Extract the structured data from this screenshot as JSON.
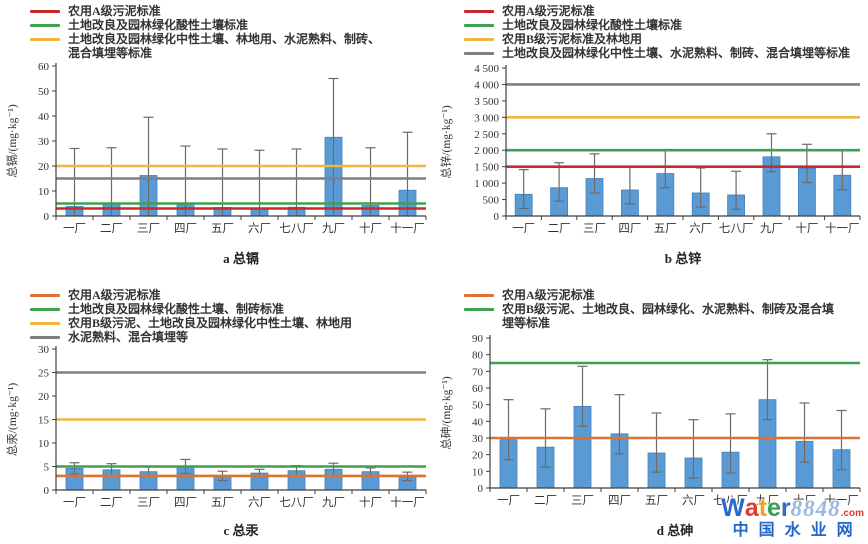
{
  "colors": {
    "red": "#c9282d",
    "orange": "#dc7233",
    "green": "#3fa04e",
    "yellow": "#f0b63f",
    "gray": "#7f7f7f",
    "bar": "#5b9bd5",
    "bar_edge": "#4380b8",
    "error": "#6b6b6b",
    "axis": "#3f3f3f"
  },
  "chart_data": [
    {
      "id": "a",
      "type": "bar",
      "title": "a 总镉",
      "ylabel": "总镉/(mg·kg⁻¹)",
      "ylim": [
        0,
        60
      ],
      "yticks": [
        0,
        10,
        20,
        30,
        40,
        50,
        60
      ],
      "ytick_labels": [
        "0",
        "10",
        "20",
        "30",
        "40",
        "50",
        "60"
      ],
      "categories": [
        "一厂",
        "二厂",
        "三厂",
        "四厂",
        "五厂",
        "六厂",
        "七八厂",
        "九厂",
        "十厂",
        "十一厂"
      ],
      "values": [
        3.8,
        4.8,
        16.2,
        5.1,
        3.4,
        2.7,
        3.5,
        31.5,
        4.2,
        10.3
      ],
      "error_top": [
        27,
        27.3,
        39.5,
        28,
        26.8,
        26.3,
        26.8,
        55,
        27.3,
        33.5
      ],
      "error_low": [
        0,
        0,
        0,
        0,
        0,
        0,
        0,
        0,
        0,
        0
      ],
      "legend": [
        {
          "color": "red",
          "label": "农用A级污泥标准"
        },
        {
          "color": "green",
          "label": "土地改良及园林绿化酸性土壤标准"
        },
        {
          "color": "yellow",
          "label": "土地改良及园林绿化中性土壤、林地用、水泥熟料、制砖、混合填埋等标准"
        }
      ],
      "reference_lines": [
        {
          "color": "gray",
          "value": 15
        },
        {
          "color": "yellow",
          "value": 20
        },
        {
          "color": "green",
          "value": 5
        },
        {
          "color": "red",
          "value": 3
        }
      ]
    },
    {
      "id": "b",
      "type": "bar",
      "title": "b 总锌",
      "ylabel": "总锌/(mg·kg⁻¹)",
      "ylim": [
        0,
        4500
      ],
      "yticks": [
        0,
        500,
        1000,
        1500,
        2000,
        2500,
        3000,
        3500,
        4000,
        4500
      ],
      "ytick_labels": [
        "0",
        "500",
        "1 000",
        "1 500",
        "2 000",
        "2 500",
        "3 000",
        "3 500",
        "4 000",
        "4 500"
      ],
      "categories": [
        "一厂",
        "二厂",
        "三厂",
        "四厂",
        "五厂",
        "六厂",
        "七八厂",
        "九厂",
        "十厂",
        "十一厂"
      ],
      "values": [
        660,
        860,
        1140,
        790,
        1290,
        700,
        640,
        1800,
        1450,
        1240
      ],
      "error_top": [
        1410,
        1620,
        1890,
        1490,
        2020,
        1460,
        1360,
        2500,
        2180,
        1990
      ],
      "error_low": [
        230,
        450,
        700,
        370,
        860,
        270,
        200,
        1350,
        1020,
        800
      ],
      "legend": [
        {
          "color": "red",
          "label": "农用A级污泥标准"
        },
        {
          "color": "green",
          "label": "土地改良及园林绿化酸性土壤标准"
        },
        {
          "color": "yellow",
          "label": "农用B级污泥标准及林地用"
        },
        {
          "color": "gray",
          "label": "土地改良及园林绿化中性土壤、水泥熟料、制砖、混合填埋等标准"
        }
      ],
      "reference_lines": [
        {
          "color": "gray",
          "value": 4000
        },
        {
          "color": "yellow",
          "value": 3000
        },
        {
          "color": "green",
          "value": 2000
        },
        {
          "color": "red",
          "value": 1500
        }
      ]
    },
    {
      "id": "c",
      "type": "bar",
      "title": "c 总汞",
      "ylabel": "总汞/(mg·kg⁻¹)",
      "ylim": [
        0,
        30
      ],
      "yticks": [
        0,
        5,
        10,
        15,
        20,
        25,
        30
      ],
      "ytick_labels": [
        "0",
        "5",
        "10",
        "15",
        "20",
        "25",
        "30"
      ],
      "categories": [
        "一厂",
        "二厂",
        "三厂",
        "四厂",
        "五厂",
        "六厂",
        "七八厂",
        "九厂",
        "十厂",
        "十一厂"
      ],
      "values": [
        4.6,
        4.3,
        3.9,
        5.0,
        3.0,
        3.6,
        4.1,
        4.4,
        3.9,
        2.9
      ],
      "error_top": [
        5.8,
        5.6,
        4.9,
        6.5,
        4.0,
        4.4,
        5.2,
        5.7,
        4.7,
        3.8
      ],
      "error_low": [
        3.4,
        3.0,
        2.9,
        3.5,
        2.0,
        2.8,
        3.0,
        3.1,
        3.1,
        2.0
      ],
      "legend": [
        {
          "color": "orange",
          "label": "农用A级污泥标准"
        },
        {
          "color": "green",
          "label": "土地改良及园林绿化酸性土壤、制砖标准"
        },
        {
          "color": "yellow",
          "label": "农用B级污泥、土地改良及园林绿化中性土壤、林地用"
        },
        {
          "color": "gray",
          "label": "水泥熟料、混合填埋等"
        }
      ],
      "reference_lines": [
        {
          "color": "gray",
          "value": 25
        },
        {
          "color": "yellow",
          "value": 15
        },
        {
          "color": "green",
          "value": 5
        },
        {
          "color": "orange",
          "value": 3
        }
      ]
    },
    {
      "id": "d",
      "type": "bar",
      "title": "d 总砷",
      "ylabel": "总砷/(mg·kg⁻¹)",
      "ylim": [
        0,
        90
      ],
      "yticks": [
        0,
        10,
        20,
        30,
        40,
        50,
        60,
        70,
        80,
        90
      ],
      "ytick_labels": [
        "0",
        "10",
        "20",
        "30",
        "40",
        "50",
        "60",
        "70",
        "80",
        "90"
      ],
      "categories": [
        "一厂",
        "二厂",
        "三厂",
        "四厂",
        "五厂",
        "六厂",
        "七八厂",
        "九厂",
        "十厂",
        "十一厂"
      ],
      "values": [
        29,
        24.5,
        49,
        32.5,
        21,
        18,
        21.5,
        53,
        28,
        23
      ],
      "error_top": [
        53,
        47.5,
        73,
        56,
        45,
        41,
        44.5,
        77,
        51,
        46.5
      ],
      "error_low": [
        17,
        12.5,
        37,
        20.5,
        9.5,
        6,
        9,
        41,
        15.5,
        11
      ],
      "legend": [
        {
          "color": "orange",
          "label": "农用A级污泥标准"
        },
        {
          "color": "green",
          "label": "农用B级污泥、土地改良、园林绿化、水泥熟料、制砖及混合填埋等标准"
        }
      ],
      "reference_lines": [
        {
          "color": "green",
          "value": 75
        },
        {
          "color": "orange",
          "value": 30
        }
      ]
    }
  ],
  "watermark": {
    "letters": [
      {
        "ch": "W",
        "color": "#2b68cc"
      },
      {
        "ch": "a",
        "color": "#e23b2e"
      },
      {
        "ch": "t",
        "color": "#efa11f"
      },
      {
        "ch": "e",
        "color": "#31a04f"
      },
      {
        "ch": "r",
        "color": "#3b67cc"
      }
    ],
    "number": "8848",
    "suffix": ".com",
    "line2": "中国水业网"
  }
}
